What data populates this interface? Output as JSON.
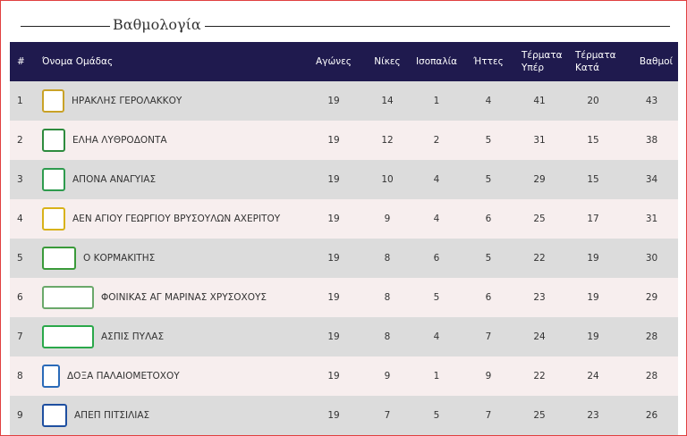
{
  "title": "Βαθμολογία",
  "table": {
    "headers": [
      "#",
      "Όνομα Ομάδας",
      "Αγώνες",
      "Νίκες",
      "Ισοπαλία",
      "Ήττες",
      "Τέρματα Υπέρ",
      "Τέρματα Κατά",
      "Βαθμοί"
    ],
    "rows": [
      [
        1,
        "ΗΡΑΚΛΗΣ ΓΕΡΟΛΑΚΚΟΥ",
        19,
        14,
        1,
        4,
        41,
        20,
        43
      ],
      [
        2,
        "ΕΛΗΑ ΛΥΘΡΟΔΟΝΤΑ",
        19,
        12,
        2,
        5,
        31,
        15,
        38
      ],
      [
        3,
        "ΑΠΟΝΑ ΑΝΑΓΥΙΑΣ",
        19,
        10,
        4,
        5,
        29,
        15,
        34
      ],
      [
        4,
        "ΑΕΝ ΑΓΙΟΥ ΓΕΩΡΓΙΟΥ ΒΡΥΣΟΥΛΩΝ ΑΧΕΡΙΤΟΥ",
        19,
        9,
        4,
        6,
        25,
        17,
        31
      ],
      [
        5,
        "Ο ΚΟΡΜΑΚΙΤΗΣ",
        19,
        8,
        6,
        5,
        22,
        19,
        30
      ],
      [
        6,
        "ΦΟΙΝΙΚΑΣ ΑΓ ΜΑΡΙΝΑΣ ΧΡΥΣΟΧΟΥΣ",
        19,
        8,
        5,
        6,
        23,
        19,
        29
      ],
      [
        7,
        "ΑΣΠΙΣ ΠΥΛΑΣ",
        19,
        8,
        4,
        7,
        24,
        19,
        28
      ],
      [
        8,
        "ΔΟΞΑ ΠΑΛΑΙΟΜΕΤΟΧΟΥ",
        19,
        9,
        1,
        9,
        22,
        24,
        28
      ],
      [
        9,
        "ΑΠΕΠ ΠΙΤΣΙΛΙΑΣ",
        19,
        7,
        5,
        7,
        25,
        23,
        26
      ]
    ]
  }
}
